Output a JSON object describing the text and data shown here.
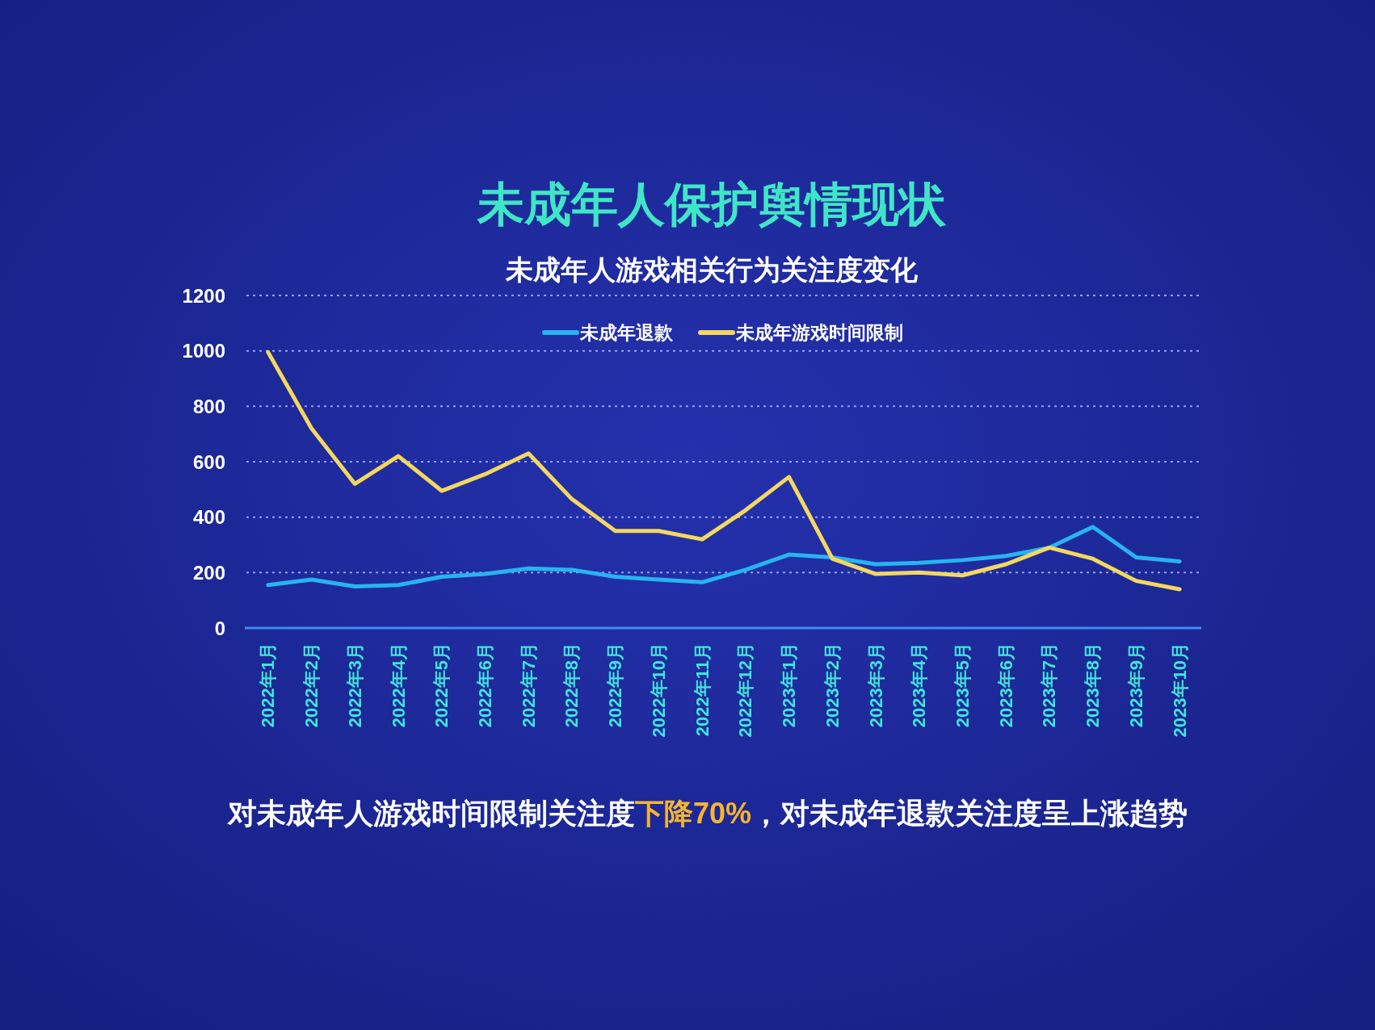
{
  "chart_data": {
    "type": "line",
    "title": "未成年人保护舆情现状",
    "subtitle": "未成年人游戏相关行为关注度变化",
    "categories": [
      "2022年1月",
      "2022年2月",
      "2022年3月",
      "2022年4月",
      "2022年5月",
      "2022年6月",
      "2022年7月",
      "2022年8月",
      "2022年9月",
      "2022年10月",
      "2022年11月",
      "2022年12月",
      "2023年1月",
      "2023年2月",
      "2023年3月",
      "2023年4月",
      "2023年5月",
      "2023年6月",
      "2023年7月",
      "2023年8月",
      "2023年9月",
      "2023年10月"
    ],
    "series": [
      {
        "name": "未成年退款",
        "color": "#27b4f0",
        "values": [
          155,
          175,
          150,
          155,
          185,
          195,
          215,
          210,
          185,
          175,
          165,
          210,
          265,
          255,
          230,
          235,
          245,
          260,
          290,
          365,
          255,
          240
        ]
      },
      {
        "name": "未成年游戏时间限制",
        "color": "#f4d85e",
        "values": [
          995,
          720,
          520,
          620,
          495,
          555,
          630,
          465,
          350,
          350,
          320,
          425,
          545,
          250,
          195,
          200,
          190,
          230,
          290,
          250,
          170,
          140
        ]
      }
    ],
    "ylim": [
      0,
      1200
    ],
    "yticks": [
      0,
      200,
      400,
      600,
      800,
      1000,
      1200
    ],
    "grid": "y",
    "legend": "top",
    "line_style": "solid",
    "annotations": [
      "对未成年人游戏时间限制关注度",
      "下降70%",
      "，对未成年退款关注度呈上涨趋势"
    ]
  }
}
